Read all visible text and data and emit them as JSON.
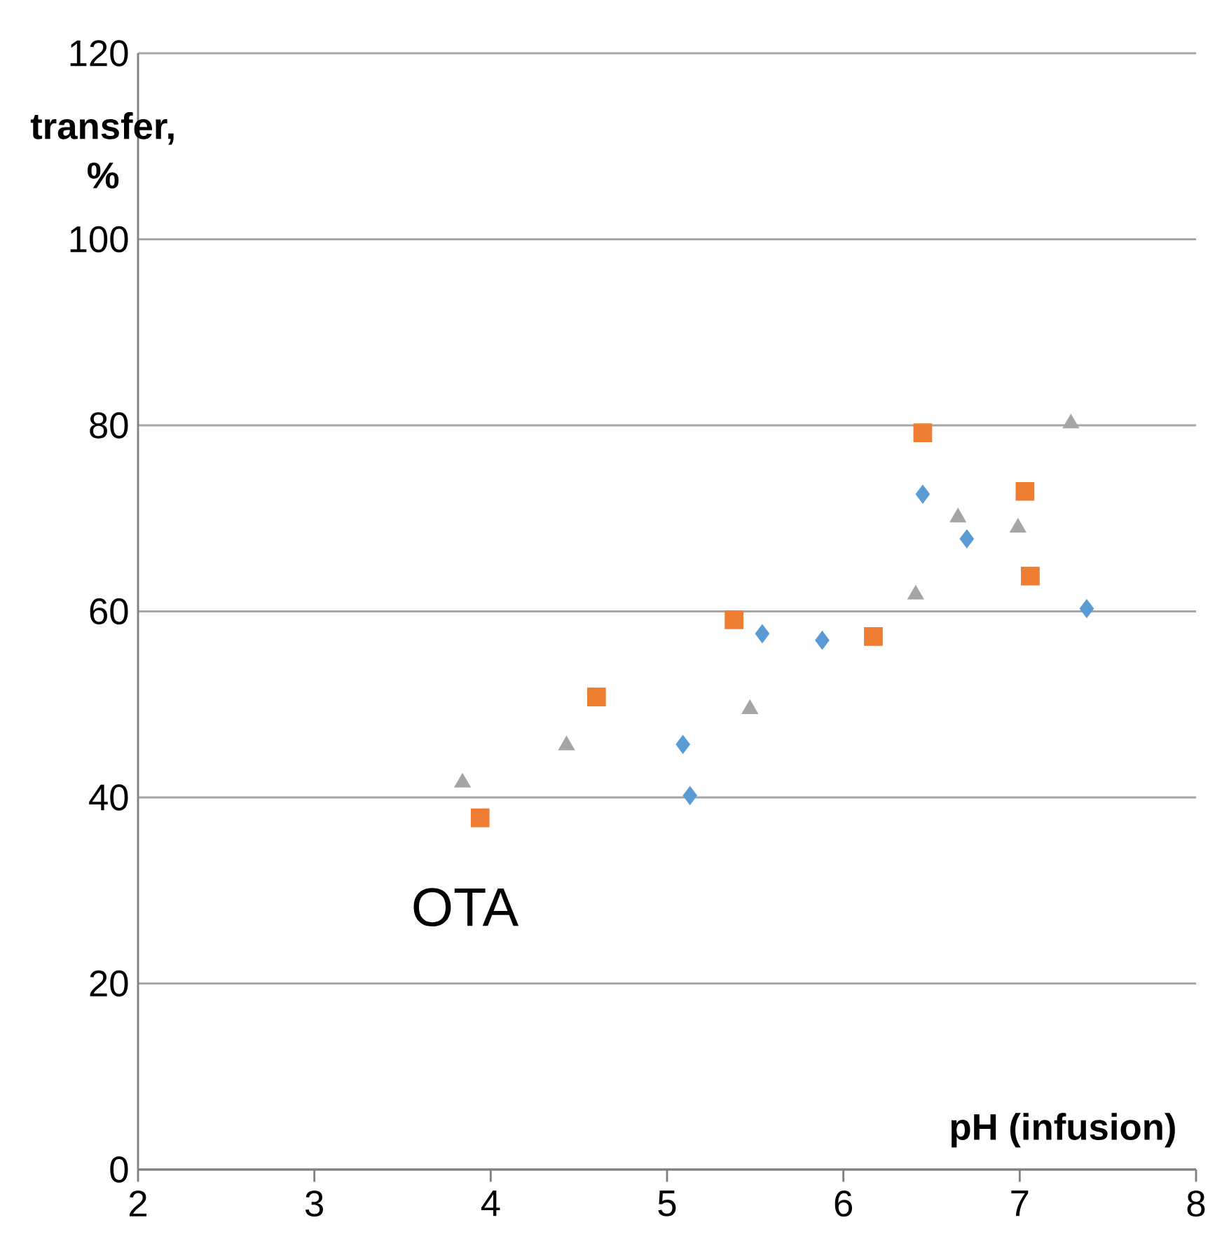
{
  "chart_data": {
    "type": "scatter",
    "xlabel": "pH (infusion)",
    "ylabel": "transfer, %",
    "annotations": [
      "OTA"
    ],
    "xlim": [
      2,
      8
    ],
    "ylim": [
      0,
      120
    ],
    "xticks": [
      2,
      3,
      4,
      5,
      6,
      7,
      8
    ],
    "yticks": [
      0,
      20,
      40,
      60,
      80,
      100,
      120
    ],
    "grid": "y",
    "series": [
      {
        "color": "#5b9bd5",
        "marker": "diamond",
        "x": [
          5.09,
          5.13,
          5.54,
          5.88,
          6.45,
          6.7,
          7.38
        ],
        "values": [
          45.7,
          40.2,
          57.6,
          56.9,
          72.6,
          67.8,
          60.3
        ]
      },
      {
        "color": "#ed7d31",
        "marker": "square",
        "x": [
          3.94,
          4.6,
          5.38,
          6.17,
          6.45,
          7.03,
          7.06
        ],
        "values": [
          37.8,
          50.8,
          59.1,
          57.3,
          79.2,
          72.9,
          63.8
        ]
      },
      {
        "color": "#a5a5a5",
        "marker": "triangle",
        "x": [
          3.84,
          4.43,
          5.47,
          6.41,
          6.65,
          6.99,
          7.29
        ],
        "values": [
          41.6,
          45.6,
          49.5,
          61.8,
          70.1,
          69.0,
          80.2
        ]
      }
    ]
  }
}
